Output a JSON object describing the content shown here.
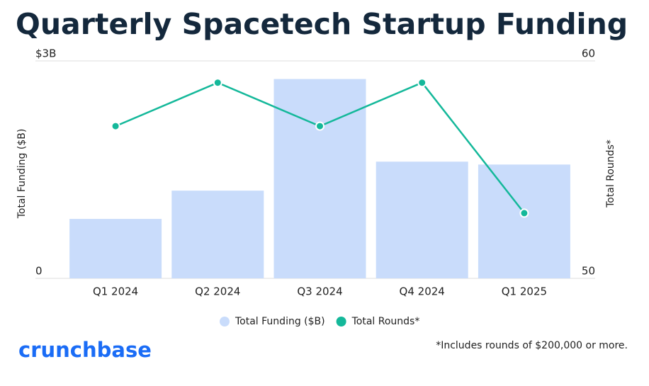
{
  "chart_data": {
    "type": "bar-line",
    "title": "Quarterly Spacetech Startup Funding",
    "categories": [
      "Q1 2024",
      "Q2 2024",
      "Q3 2024",
      "Q4 2024",
      "Q1 2025"
    ],
    "series": [
      {
        "name": "Total Funding ($B)",
        "color": "#c9dcfb",
        "type": "bar",
        "axis": "y",
        "values": [
          0.82,
          1.21,
          2.75,
          1.61,
          1.57
        ]
      },
      {
        "name": "Total Rounds*",
        "color": "#14b89a",
        "type": "line",
        "axis": "y2",
        "values": [
          57,
          59,
          57,
          59,
          53
        ]
      }
    ],
    "ylabel": "Total Funding ($B)",
    "y2label": "Total Rounds*",
    "ylim": [
      0,
      3
    ],
    "yticks": [
      0,
      {
        "value": 3,
        "label": "$3B"
      }
    ],
    "y2lim": [
      50,
      60
    ],
    "y2ticks": [
      50,
      60
    ],
    "legend": "bottom",
    "note": "*Includes rounds of $200,000 or more.",
    "logo": "crunchbase"
  }
}
